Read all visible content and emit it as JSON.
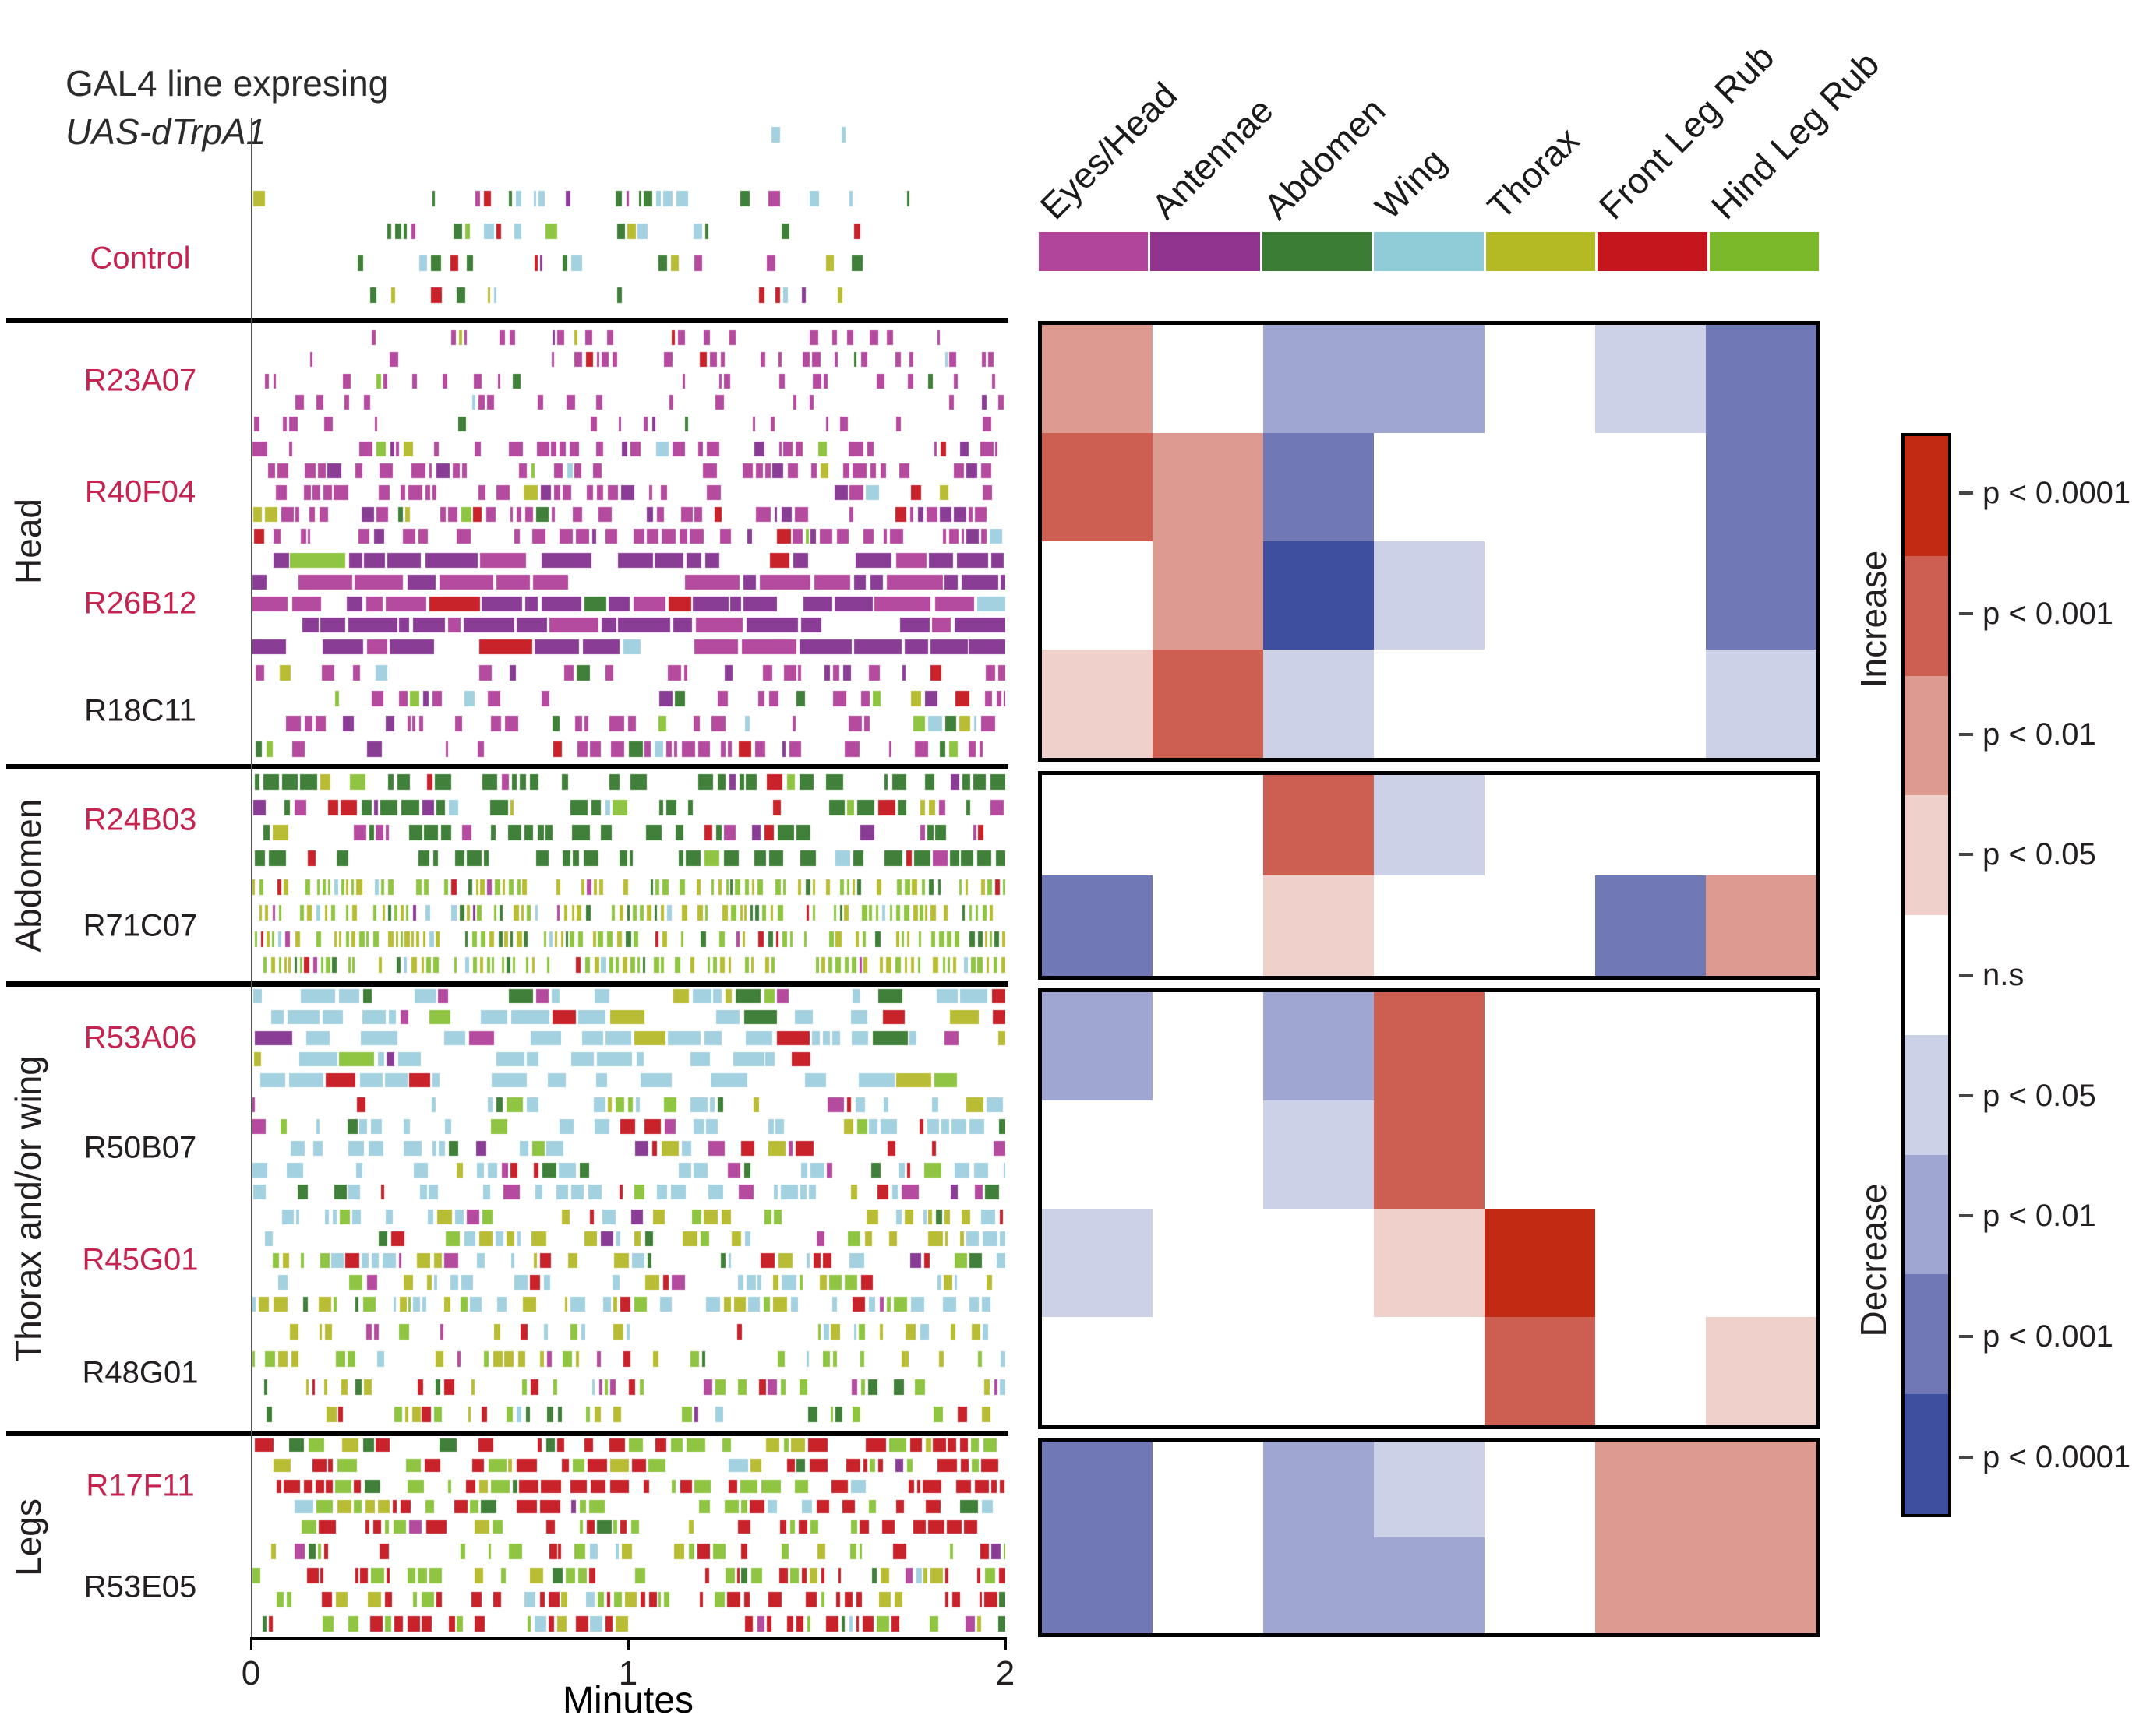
{
  "title": {
    "line1": "GAL4 line expresing",
    "line2": "UAS-dTrpA1"
  },
  "x_axis": {
    "label": "Minutes",
    "ticks": [
      "0",
      "1",
      "2"
    ]
  },
  "legend": {
    "increase": "Increase",
    "decrease": "Decrease",
    "entries": [
      {
        "label": "p < 0.0001",
        "color": "#c22a14"
      },
      {
        "label": "p < 0.001",
        "color": "#cc5f52"
      },
      {
        "label": "p < 0.01",
        "color": "#dd9a90"
      },
      {
        "label": "p < 0.05",
        "color": "#efd0cb"
      },
      {
        "label": "n.s",
        "color": "#ffffff"
      },
      {
        "label": "p < 0.05",
        "color": "#cdd1e8"
      },
      {
        "label": "p < 0.01",
        "color": "#a0a6d2"
      },
      {
        "label": "p < 0.001",
        "color": "#7078b5"
      },
      {
        "label": "p < 0.0001",
        "color": "#3f4fa0"
      }
    ]
  },
  "behaviors": [
    {
      "label": "Eyes/Head",
      "swatch": "#b0459b",
      "tick": "#b44b9e"
    },
    {
      "label": "Antennae",
      "swatch": "#90348f",
      "tick": "#8a3d95"
    },
    {
      "label": "Abdomen",
      "swatch": "#3c7d36",
      "tick": "#41803a"
    },
    {
      "label": "Wing",
      "swatch": "#90cbd8",
      "tick": "#a3d1e0"
    },
    {
      "label": "Thorax",
      "swatch": "#b4ba24",
      "tick": "#b8bd35"
    },
    {
      "label": "Front Leg Rub",
      "swatch": "#c5161d",
      "tick": "#c8232b"
    },
    {
      "label": "Hind Leg Rub",
      "swatch": "#7cb92a",
      "tick": "#90c443"
    }
  ],
  "groups": [
    {
      "label": "Head",
      "lines": [
        "R23A07",
        "R40F04",
        "R26B12",
        "R18C11"
      ]
    },
    {
      "label": "Abdomen",
      "lines": [
        "R24B03",
        "R71C07"
      ]
    },
    {
      "label": "Thorax and/or wing",
      "lines": [
        "R53A06",
        "R50B07",
        "R45G01",
        "R48G01"
      ]
    },
    {
      "label": "Legs",
      "lines": [
        "R17F11",
        "R53E05"
      ]
    }
  ],
  "chart_data": {
    "type": "heatmap",
    "title": "GAL4 line expresing UAS-dTrpA1",
    "behavior_columns": [
      "Eyes/Head",
      "Antennae",
      "Abdomen",
      "Wing",
      "Thorax",
      "Front Leg Rub",
      "Hind Leg Rub"
    ],
    "significance": {
      "description": "Signed significance level per GAL4 line and behavior column: +4 = p<0.0001 increase, +3 = p<0.001 increase, +2 = p<0.01 increase, +1 = p<0.05 increase, 0 = n.s, -1 = p<0.05 decrease, -2 = p<0.01 decrease, -3 = p<0.001 decrease, -4 = p<0.0001 decrease",
      "rows": [
        "R23A07",
        "R40F04",
        "R26B12",
        "R18C11",
        "R24B03",
        "R71C07",
        "R53A06",
        "R50B07",
        "R45G01",
        "R48G01",
        "R17F11",
        "R53E05"
      ],
      "levels": [
        [
          2,
          0,
          -2,
          -2,
          0,
          -1,
          -3
        ],
        [
          3,
          2,
          -3,
          0,
          0,
          0,
          -3
        ],
        [
          0,
          2,
          -4,
          -1,
          0,
          0,
          -3
        ],
        [
          1,
          3,
          -1,
          0,
          0,
          0,
          -1
        ],
        [
          0,
          0,
          3,
          -1,
          0,
          0,
          0
        ],
        [
          -3,
          0,
          1,
          0,
          0,
          -3,
          2
        ],
        [
          -2,
          0,
          -2,
          3,
          0,
          0,
          0
        ],
        [
          0,
          0,
          -1,
          3,
          0,
          0,
          0
        ],
        [
          -1,
          0,
          0,
          1,
          4,
          0,
          0
        ],
        [
          0,
          0,
          0,
          0,
          3,
          0,
          1
        ],
        [
          -3,
          0,
          -2,
          -1,
          0,
          2,
          2
        ],
        [
          -3,
          0,
          -2,
          -2,
          0,
          2,
          2
        ]
      ]
    },
    "raster": {
      "type": "ethogram",
      "x_range_minutes": [
        0,
        2
      ],
      "note": "Each line band shows per-fly behavior bouts over 2 minutes; mix weights follow behavior column order",
      "lines": [
        {
          "name": "Control",
          "red": true,
          "flies": 6,
          "fill": 0.42,
          "mean_bout": 8,
          "window": [
            0.13,
            0.8
          ],
          "row_fill": [
            0.1,
            0.04,
            0.85,
            1,
            1,
            0.9
          ],
          "mix": [
            0.1,
            0.05,
            0.2,
            0.25,
            0.15,
            0.1,
            0.15
          ]
        },
        {
          "name": "R23A07",
          "red": true,
          "flies": 5,
          "fill": 0.25,
          "mean_bout": 6,
          "mix": [
            0.8,
            0.06,
            0.04,
            0.03,
            0.02,
            0.03,
            0.02
          ]
        },
        {
          "name": "R40F04",
          "red": true,
          "flies": 5,
          "fill": 0.55,
          "mean_bout": 10,
          "mix": [
            0.7,
            0.16,
            0.04,
            0.02,
            0.02,
            0.04,
            0.02
          ]
        },
        {
          "name": "R26B12",
          "red": true,
          "flies": 5,
          "fill": 0.82,
          "mean_bout": 40,
          "mix": [
            0.25,
            0.62,
            0.02,
            0.02,
            0.01,
            0.07,
            0.01
          ]
        },
        {
          "name": "R18C11",
          "red": false,
          "flies": 4,
          "fill": 0.42,
          "mean_bout": 10,
          "mix": [
            0.62,
            0.18,
            0.05,
            0.04,
            0.02,
            0.05,
            0.04
          ]
        },
        {
          "name": "R24B03",
          "red": true,
          "flies": 4,
          "fill": 0.62,
          "mean_bout": 12,
          "mix": [
            0.06,
            0.03,
            0.68,
            0.04,
            0.05,
            0.05,
            0.09
          ]
        },
        {
          "name": "R71C07",
          "red": false,
          "flies": 4,
          "fill": 0.75,
          "mean_bout": 4,
          "mix": [
            0.02,
            0.01,
            0.14,
            0.04,
            0.32,
            0.04,
            0.43
          ]
        },
        {
          "name": "R53A06",
          "red": true,
          "flies": 5,
          "fill": 0.6,
          "mean_bout": 26,
          "mix": [
            0.04,
            0.01,
            0.08,
            0.68,
            0.06,
            0.06,
            0.07
          ]
        },
        {
          "name": "R50B07",
          "red": false,
          "flies": 5,
          "fill": 0.48,
          "mean_bout": 12,
          "mix": [
            0.08,
            0.03,
            0.06,
            0.58,
            0.09,
            0.06,
            0.1
          ]
        },
        {
          "name": "R45G01",
          "red": true,
          "flies": 5,
          "fill": 0.52,
          "mean_bout": 10,
          "mix": [
            0.03,
            0.01,
            0.06,
            0.4,
            0.28,
            0.05,
            0.17
          ]
        },
        {
          "name": "R48G01",
          "red": false,
          "flies": 4,
          "fill": 0.4,
          "mean_bout": 7,
          "mix": [
            0.05,
            0.01,
            0.1,
            0.12,
            0.34,
            0.08,
            0.3
          ]
        },
        {
          "name": "R17F11",
          "red": true,
          "flies": 5,
          "fill": 0.66,
          "mean_bout": 14,
          "mix": [
            0.02,
            0.01,
            0.05,
            0.04,
            0.1,
            0.45,
            0.33
          ]
        },
        {
          "name": "R53E05",
          "red": false,
          "flies": 4,
          "fill": 0.55,
          "mean_bout": 9,
          "mix": [
            0.03,
            0.01,
            0.06,
            0.05,
            0.1,
            0.38,
            0.37
          ]
        }
      ]
    }
  }
}
